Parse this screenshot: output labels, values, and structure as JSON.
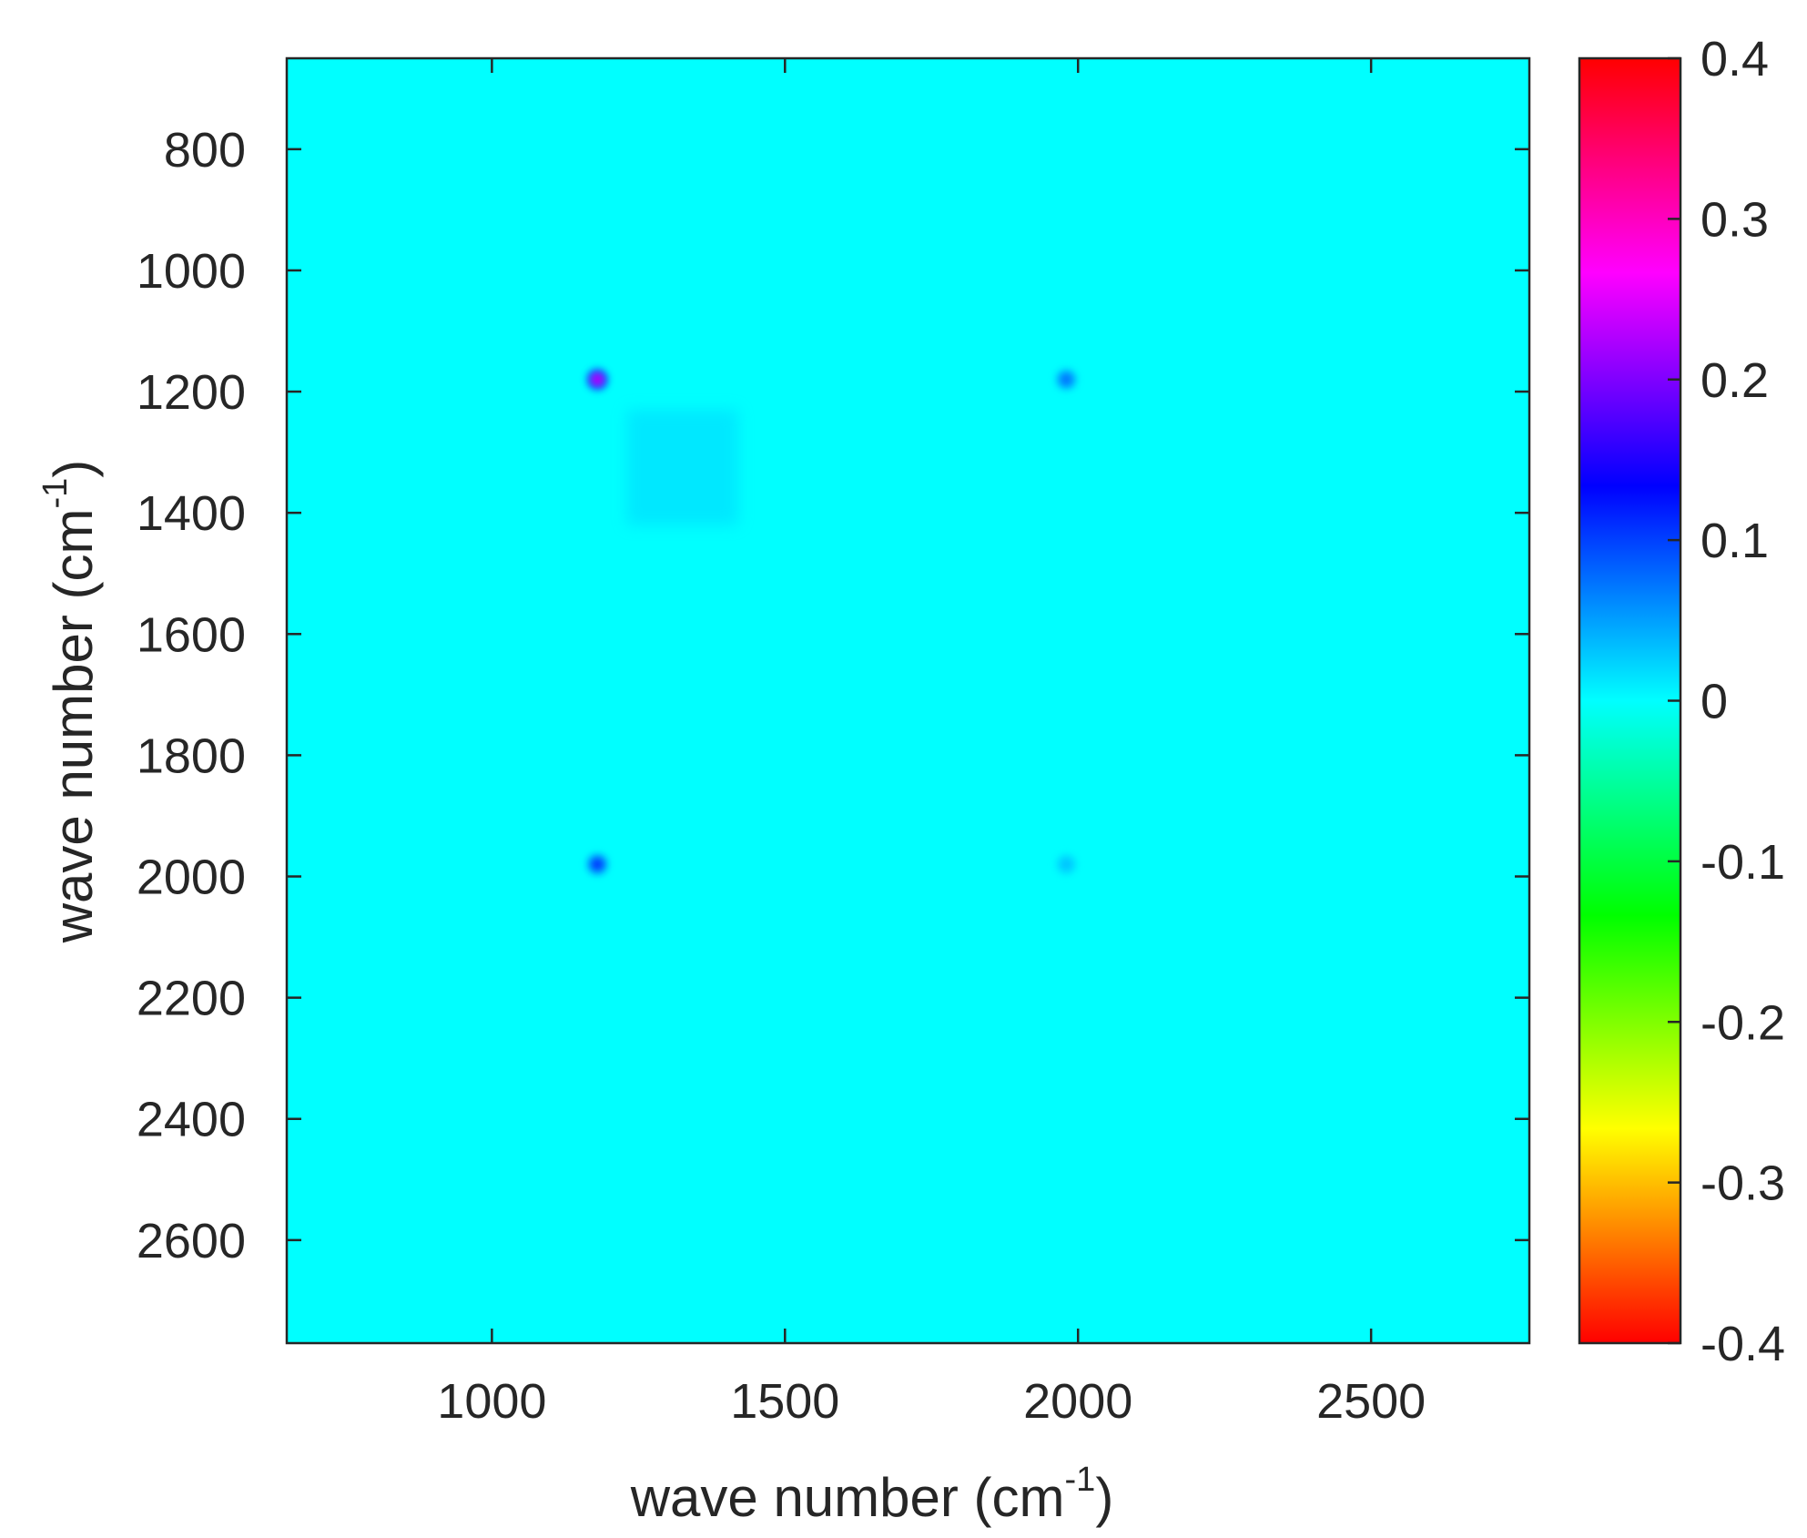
{
  "chart_data": {
    "type": "heatmap",
    "title": "",
    "xlabel": {
      "text": "wave number (cm",
      "superscript": "-1",
      "close": ")"
    },
    "ylabel": {
      "text": "wave number (cm",
      "superscript": "-1",
      "close": ")"
    },
    "xlim": [
      650,
      2770
    ],
    "ylim": [
      650,
      2770
    ],
    "y_reversed": true,
    "x_ticks": [
      1000,
      1500,
      2000,
      2500
    ],
    "x_tick_labels": [
      "1000",
      "1500",
      "2000",
      "2500"
    ],
    "y_ticks": [
      800,
      1000,
      1200,
      1400,
      1600,
      1800,
      2000,
      2200,
      2400,
      2600
    ],
    "y_tick_labels": [
      "800",
      "1000",
      "1200",
      "1400",
      "1600",
      "1800",
      "2000",
      "2200",
      "2400",
      "2600"
    ],
    "background_value": 0,
    "colorbar": {
      "range": [
        -0.4,
        0.4
      ],
      "ticks": [
        0.4,
        0.3,
        0.2,
        0.1,
        0,
        -0.1,
        -0.2,
        -0.3,
        -0.4
      ],
      "tick_labels": [
        "0.4",
        "0.3",
        "0.2",
        "0.1",
        "0",
        "-0.1",
        "-0.2",
        "-0.3",
        "-0.4"
      ],
      "colormap": "hsv",
      "colors_top_to_bottom": [
        "#ff0000",
        "#ff00ff",
        "#0000ff",
        "#00ffff",
        "#00ff00",
        "#ffff00",
        "#ff0000"
      ]
    },
    "features": [
      {
        "x": 1180,
        "y": 1180,
        "value": 0.22,
        "kind": "peak"
      },
      {
        "x": 1980,
        "y": 1180,
        "value": 0.07,
        "kind": "peak"
      },
      {
        "x": 1180,
        "y": 1980,
        "value": 0.1,
        "kind": "peak"
      },
      {
        "x": 1980,
        "y": 1980,
        "value": 0.03,
        "kind": "peak"
      },
      {
        "x_range": [
          1230,
          1420
        ],
        "y_range": [
          1230,
          1420
        ],
        "value": 0.02,
        "kind": "region"
      }
    ],
    "cross_bands": [
      {
        "orientation": "horizontal",
        "at": 1180,
        "value": -0.03
      },
      {
        "orientation": "vertical",
        "at": 1180,
        "value": -0.03
      },
      {
        "orientation": "horizontal",
        "at": 1980,
        "value": -0.02
      },
      {
        "orientation": "vertical",
        "at": 1980,
        "value": -0.02
      }
    ]
  }
}
